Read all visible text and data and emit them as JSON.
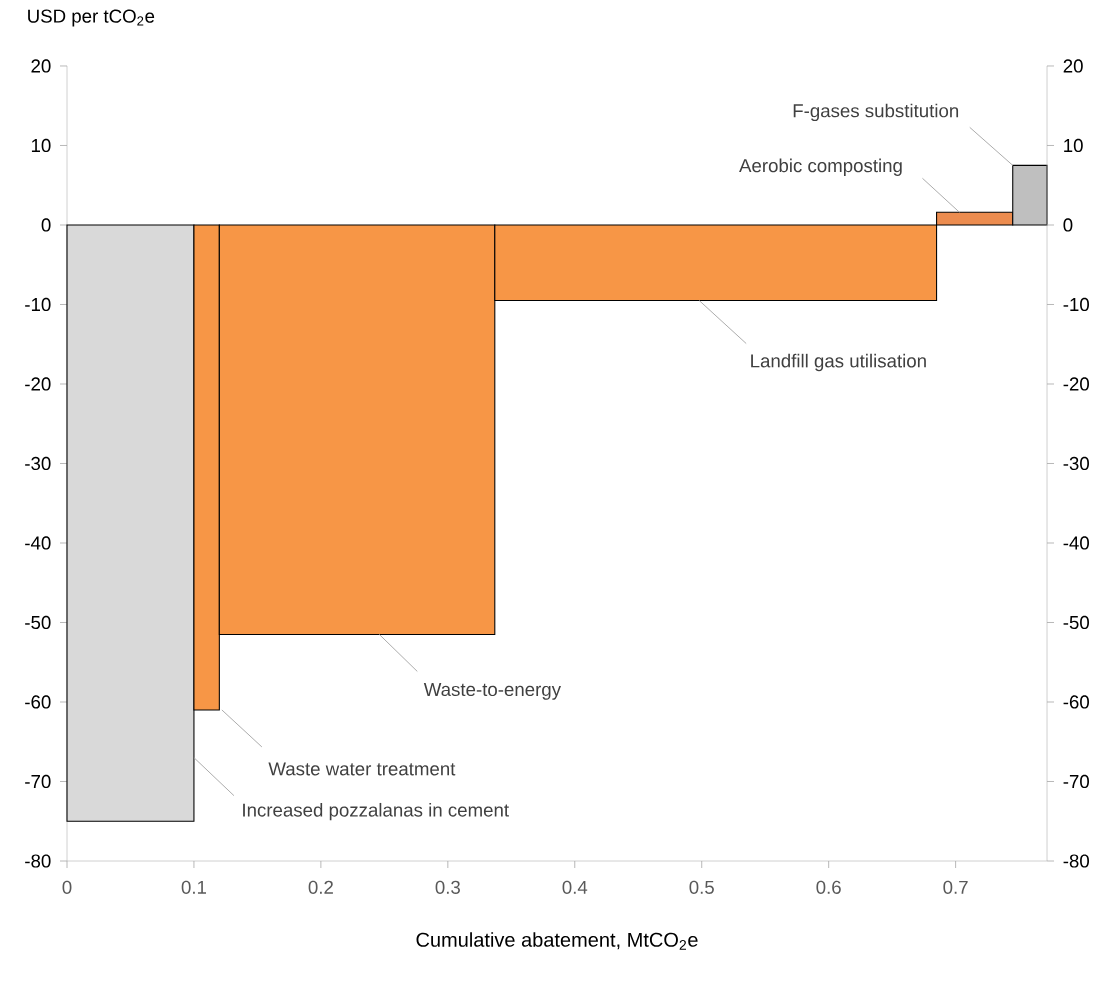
{
  "chart_data": {
    "type": "histogram",
    "xlabel": "Cumulative abatement, MtCO$_{2}$e",
    "ylabel": "USD per tCO$_{2}$e",
    "bins": [
      0,
      0.1,
      0.12,
      0.337,
      0.685,
      0.745,
      0.772
    ],
    "values": [
      -75,
      -61,
      -51.5,
      -9.5,
      1.6,
      7.5
    ],
    "colors": [
      "#d9d9d9",
      "#f79646",
      "#f79646",
      "#f79646",
      "#ec8c4f",
      "#bfbfbf"
    ],
    "xlim": [
      0,
      0.772
    ],
    "xticks": [
      0,
      0.1,
      0.2,
      0.3,
      0.4,
      0.5,
      0.6,
      0.7
    ],
    "ylim": [
      -80,
      20
    ],
    "yticks": [
      -80,
      -70,
      -60,
      -50,
      -40,
      -30,
      -20,
      -10,
      0,
      10,
      20
    ],
    "y2lim": [
      -80,
      20
    ],
    "y2ticks": [
      -80,
      -70,
      -60,
      -50,
      -40,
      -30,
      -20,
      -10,
      0,
      10,
      20
    ],
    "annotations": [
      {
        "text": "F-gases substitution",
        "x": 0.745,
        "y": 7.5
      },
      {
        "text": "Aerobic composting",
        "x": 0.703,
        "y": 1.6
      },
      {
        "text": "Landfill gas utilisation",
        "x": 0.498,
        "y": -9.5
      },
      {
        "text": "Waste-to-energy",
        "x": 0.246,
        "y": -51.5
      },
      {
        "text": "Waste water treatment",
        "x": 0.122,
        "y": -61
      },
      {
        "text": "Increased pozzalanas in cement",
        "x": 0.1,
        "y": -67
      }
    ]
  }
}
